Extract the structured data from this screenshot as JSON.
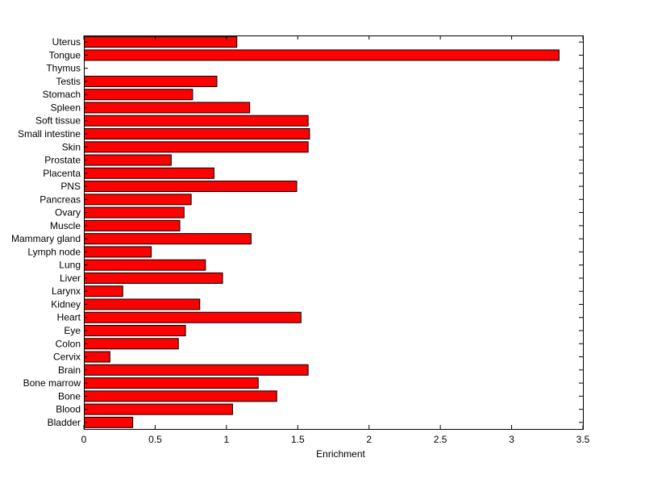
{
  "chart_data": {
    "type": "bar",
    "orientation": "horizontal",
    "title": "",
    "xlabel": "Enrichment",
    "ylabel": "",
    "xlim": [
      0,
      3.5
    ],
    "xticks": [
      0,
      0.5,
      1,
      1.5,
      2,
      2.5,
      3,
      3.5
    ],
    "xtick_labels": [
      "0",
      "0.5",
      "1",
      "1.5",
      "2",
      "2.5",
      "3",
      "3.5"
    ],
    "grid": false,
    "legend": "none",
    "bar_color": "#ff0000",
    "categories": [
      "Bladder",
      "Blood",
      "Bone",
      "Bone marrow",
      "Brain",
      "Cervix",
      "Colon",
      "Eye",
      "Heart",
      "Kidney",
      "Larynx",
      "Liver",
      "Lung",
      "Lymph node",
      "Mammary gland",
      "Muscle",
      "Ovary",
      "Pancreas",
      "PNS",
      "Placenta",
      "Prostate",
      "Skin",
      "Small intestine",
      "Soft tissue",
      "Spleen",
      "Stomach",
      "Testis",
      "Thymus",
      "Tongue",
      "Uterus"
    ],
    "values": [
      0.34,
      1.04,
      1.35,
      1.22,
      1.57,
      0.18,
      0.66,
      0.71,
      1.52,
      0.81,
      0.27,
      0.97,
      0.85,
      0.47,
      1.17,
      0.67,
      0.7,
      0.75,
      1.49,
      0.91,
      0.61,
      1.57,
      1.58,
      1.57,
      1.16,
      0.76,
      0.93,
      0.0,
      3.33,
      1.07
    ]
  }
}
